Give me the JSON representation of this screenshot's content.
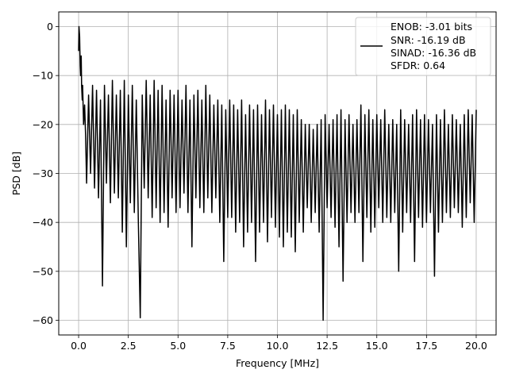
{
  "chart_data": {
    "type": "line",
    "title": "",
    "xlabel": "Frequency [MHz]",
    "ylabel": "PSD [dB]",
    "xlim": [
      -1.0,
      21.0
    ],
    "ylim": [
      -63.0,
      3.0
    ],
    "xticks": [
      0.0,
      2.5,
      5.0,
      7.5,
      10.0,
      12.5,
      15.0,
      17.5,
      20.0
    ],
    "xtick_labels": [
      "0.0",
      "2.5",
      "5.0",
      "7.5",
      "10.0",
      "12.5",
      "15.0",
      "17.5",
      "20.0"
    ],
    "yticks": [
      0,
      -10,
      -20,
      -30,
      -40,
      -50,
      -60
    ],
    "ytick_labels": [
      "0",
      "−10",
      "−20",
      "−30",
      "−40",
      "−50",
      "−60"
    ],
    "grid": true,
    "legend_position": "top-right",
    "legend_entries": [
      "ENOB: -3.01 bits",
      "SNR: -16.19 dB",
      "SINAD: -16.36 dB",
      "SFDR: 0.64"
    ],
    "line_color": "#000000",
    "series": [
      {
        "style": "noise band",
        "points": [
          [
            0.0,
            -5
          ],
          [
            0.02,
            0
          ],
          [
            0.05,
            -2
          ],
          [
            0.08,
            -8
          ],
          [
            0.1,
            -10
          ],
          [
            0.13,
            -6
          ],
          [
            0.15,
            -12
          ],
          [
            0.18,
            -15
          ],
          [
            0.2,
            -12
          ],
          [
            0.25,
            -20
          ],
          [
            0.3,
            -16
          ],
          [
            0.35,
            -22
          ],
          [
            0.4,
            -32
          ],
          [
            0.5,
            -14
          ],
          [
            0.6,
            -30
          ],
          [
            0.7,
            -12
          ],
          [
            0.8,
            -33
          ],
          [
            0.9,
            -13
          ],
          [
            1.0,
            -35
          ],
          [
            1.1,
            -15
          ],
          [
            1.2,
            -53
          ],
          [
            1.3,
            -12
          ],
          [
            1.4,
            -32
          ],
          [
            1.5,
            -14
          ],
          [
            1.6,
            -36
          ],
          [
            1.7,
            -11
          ],
          [
            1.8,
            -34
          ],
          [
            1.9,
            -14
          ],
          [
            2.0,
            -35
          ],
          [
            2.1,
            -13
          ],
          [
            2.2,
            -42
          ],
          [
            2.3,
            -11
          ],
          [
            2.4,
            -45
          ],
          [
            2.5,
            -14
          ],
          [
            2.6,
            -36
          ],
          [
            2.7,
            -12
          ],
          [
            2.8,
            -38
          ],
          [
            2.9,
            -15
          ],
          [
            3.0,
            -39
          ],
          [
            3.1,
            -59.5
          ],
          [
            3.2,
            -14
          ],
          [
            3.3,
            -33
          ],
          [
            3.4,
            -11
          ],
          [
            3.5,
            -35
          ],
          [
            3.6,
            -14
          ],
          [
            3.7,
            -39
          ],
          [
            3.8,
            -11
          ],
          [
            3.9,
            -37
          ],
          [
            4.0,
            -13
          ],
          [
            4.1,
            -40
          ],
          [
            4.2,
            -12
          ],
          [
            4.3,
            -38
          ],
          [
            4.4,
            -15
          ],
          [
            4.5,
            -41
          ],
          [
            4.6,
            -13
          ],
          [
            4.7,
            -35
          ],
          [
            4.8,
            -14
          ],
          [
            4.9,
            -38
          ],
          [
            5.0,
            -13
          ],
          [
            5.1,
            -37
          ],
          [
            5.2,
            -15
          ],
          [
            5.3,
            -34
          ],
          [
            5.4,
            -12
          ],
          [
            5.5,
            -38
          ],
          [
            5.6,
            -15
          ],
          [
            5.7,
            -45
          ],
          [
            5.8,
            -14
          ],
          [
            5.9,
            -35
          ],
          [
            6.0,
            -13
          ],
          [
            6.1,
            -37
          ],
          [
            6.2,
            -15
          ],
          [
            6.3,
            -38
          ],
          [
            6.4,
            -12
          ],
          [
            6.5,
            -35
          ],
          [
            6.6,
            -14
          ],
          [
            6.7,
            -38
          ],
          [
            6.8,
            -16
          ],
          [
            6.9,
            -35
          ],
          [
            7.0,
            -15
          ],
          [
            7.1,
            -40
          ],
          [
            7.2,
            -16
          ],
          [
            7.3,
            -48
          ],
          [
            7.4,
            -17
          ],
          [
            7.5,
            -39
          ],
          [
            7.6,
            -15
          ],
          [
            7.7,
            -39
          ],
          [
            7.8,
            -16
          ],
          [
            7.9,
            -42
          ],
          [
            8.0,
            -17
          ],
          [
            8.1,
            -40
          ],
          [
            8.2,
            -15
          ],
          [
            8.3,
            -45
          ],
          [
            8.4,
            -18
          ],
          [
            8.5,
            -42
          ],
          [
            8.6,
            -16
          ],
          [
            8.7,
            -40
          ],
          [
            8.8,
            -17
          ],
          [
            8.9,
            -48
          ],
          [
            9.0,
            -16
          ],
          [
            9.1,
            -42
          ],
          [
            9.2,
            -18
          ],
          [
            9.3,
            -40
          ],
          [
            9.4,
            -15
          ],
          [
            9.5,
            -44
          ],
          [
            9.6,
            -17
          ],
          [
            9.7,
            -39
          ],
          [
            9.8,
            -16
          ],
          [
            9.9,
            -41
          ],
          [
            10.0,
            -18
          ],
          [
            10.1,
            -43
          ],
          [
            10.2,
            -17
          ],
          [
            10.3,
            -45
          ],
          [
            10.4,
            -16
          ],
          [
            10.5,
            -42
          ],
          [
            10.6,
            -17
          ],
          [
            10.7,
            -43
          ],
          [
            10.8,
            -18
          ],
          [
            10.9,
            -46
          ],
          [
            11.0,
            -17
          ],
          [
            11.1,
            -40
          ],
          [
            11.2,
            -19
          ],
          [
            11.3,
            -42
          ],
          [
            11.4,
            -20
          ],
          [
            11.5,
            -37
          ],
          [
            11.6,
            -20
          ],
          [
            11.7,
            -40
          ],
          [
            11.8,
            -21
          ],
          [
            11.9,
            -38
          ],
          [
            12.0,
            -20
          ],
          [
            12.1,
            -42
          ],
          [
            12.2,
            -19
          ],
          [
            12.3,
            -60
          ],
          [
            12.4,
            -18
          ],
          [
            12.5,
            -37
          ],
          [
            12.6,
            -20
          ],
          [
            12.7,
            -39
          ],
          [
            12.8,
            -19
          ],
          [
            12.9,
            -41
          ],
          [
            13.0,
            -18
          ],
          [
            13.1,
            -45
          ],
          [
            13.2,
            -17
          ],
          [
            13.3,
            -52
          ],
          [
            13.4,
            -19
          ],
          [
            13.5,
            -40
          ],
          [
            13.6,
            -18
          ],
          [
            13.7,
            -38
          ],
          [
            13.8,
            -20
          ],
          [
            13.9,
            -40
          ],
          [
            14.0,
            -19
          ],
          [
            14.1,
            -38
          ],
          [
            14.2,
            -16
          ],
          [
            14.3,
            -48
          ],
          [
            14.4,
            -18
          ],
          [
            14.5,
            -39
          ],
          [
            14.6,
            -17
          ],
          [
            14.7,
            -42
          ],
          [
            14.8,
            -19
          ],
          [
            14.9,
            -41
          ],
          [
            15.0,
            -18
          ],
          [
            15.1,
            -37
          ],
          [
            15.2,
            -19
          ],
          [
            15.3,
            -40
          ],
          [
            15.4,
            -17
          ],
          [
            15.5,
            -39
          ],
          [
            15.6,
            -20
          ],
          [
            15.7,
            -40
          ],
          [
            15.8,
            -19
          ],
          [
            15.9,
            -38
          ],
          [
            16.0,
            -20
          ],
          [
            16.1,
            -50
          ],
          [
            16.2,
            -17
          ],
          [
            16.3,
            -42
          ],
          [
            16.4,
            -19
          ],
          [
            16.5,
            -38
          ],
          [
            16.6,
            -20
          ],
          [
            16.7,
            -40
          ],
          [
            16.8,
            -18
          ],
          [
            16.9,
            -48
          ],
          [
            17.0,
            -17
          ],
          [
            17.1,
            -39
          ],
          [
            17.2,
            -19
          ],
          [
            17.3,
            -41
          ],
          [
            17.4,
            -18
          ],
          [
            17.5,
            -40
          ],
          [
            17.6,
            -19
          ],
          [
            17.7,
            -38
          ],
          [
            17.8,
            -20
          ],
          [
            17.9,
            -51
          ],
          [
            18.0,
            -18
          ],
          [
            18.1,
            -42
          ],
          [
            18.2,
            -19
          ],
          [
            18.3,
            -40
          ],
          [
            18.4,
            -17
          ],
          [
            18.5,
            -38
          ],
          [
            18.6,
            -20
          ],
          [
            18.7,
            -39
          ],
          [
            18.8,
            -18
          ],
          [
            18.9,
            -37
          ],
          [
            19.0,
            -19
          ],
          [
            19.1,
            -38
          ],
          [
            19.2,
            -20
          ],
          [
            19.3,
            -41
          ],
          [
            19.4,
            -18
          ],
          [
            19.5,
            -39
          ],
          [
            19.6,
            -17
          ],
          [
            19.7,
            -36
          ],
          [
            19.8,
            -18
          ],
          [
            19.9,
            -40
          ],
          [
            20.0,
            -17
          ]
        ]
      }
    ]
  }
}
